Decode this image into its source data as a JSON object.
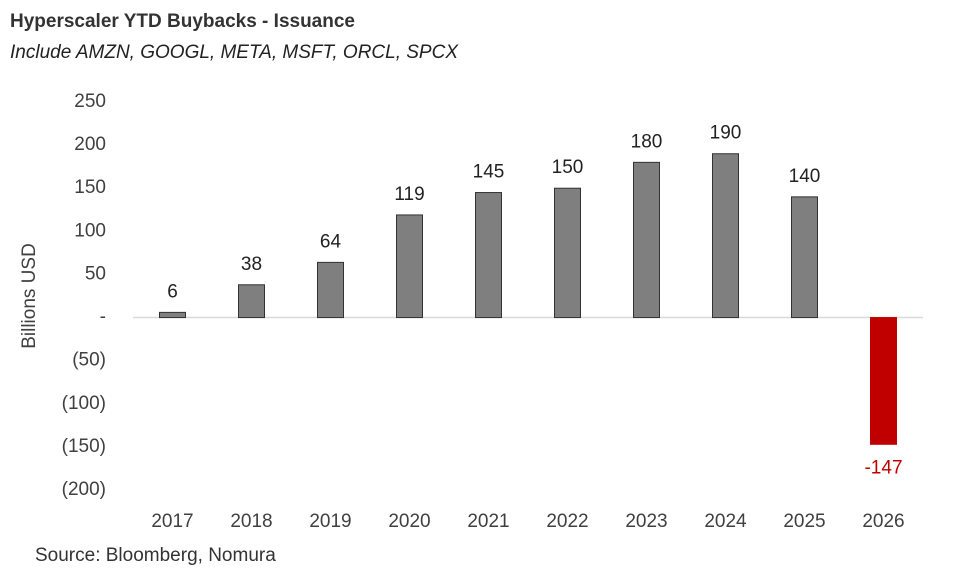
{
  "chart_data": {
    "type": "bar",
    "title": "Hyperscaler YTD Buybacks - Issuance",
    "subtitle": "Include AMZN, GOOGL, META, MSFT, ORCL, SPCX",
    "ylabel": "Billions USD",
    "source": "Source: Bloomberg, Nomura",
    "categories": [
      "2017",
      "2018",
      "2019",
      "2020",
      "2021",
      "2022",
      "2023",
      "2024",
      "2025",
      "2026"
    ],
    "values": [
      6,
      38,
      64,
      119,
      145,
      150,
      180,
      190,
      140,
      -147
    ],
    "colors": [
      "#7f7f7f",
      "#7f7f7f",
      "#7f7f7f",
      "#7f7f7f",
      "#7f7f7f",
      "#7f7f7f",
      "#7f7f7f",
      "#7f7f7f",
      "#7f7f7f",
      "#c00000"
    ],
    "ylim": [
      -200,
      250
    ],
    "yticks": [
      250,
      200,
      150,
      100,
      50,
      {
        "value": 0,
        "label": "-"
      },
      {
        "value": -50,
        "label": "(50)"
      },
      {
        "value": -100,
        "label": "(100)"
      },
      {
        "value": -150,
        "label": "(150)"
      },
      {
        "value": -200,
        "label": "(200)"
      }
    ],
    "grid": false
  }
}
